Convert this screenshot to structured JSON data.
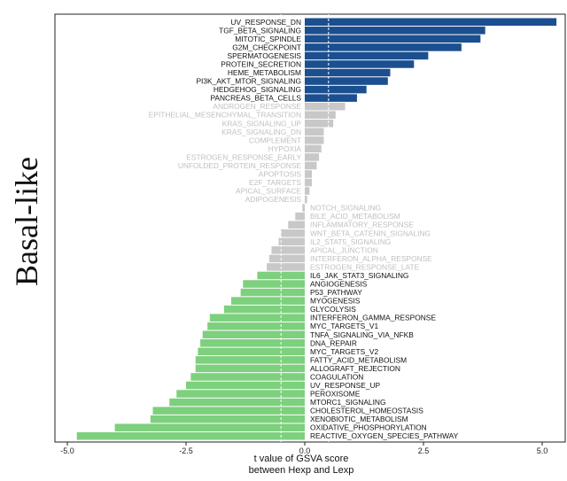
{
  "side_label": "Basal-like",
  "chart_data": {
    "type": "bar",
    "orientation": "horizontal",
    "xlabel_line1": "t value of GSVA score",
    "xlabel_line2": "between Hexp and Lexp",
    "xlim": [
      -5.0,
      5.0
    ],
    "xticks": [
      "-5.0",
      "-2.5",
      "0.0",
      "2.5",
      "5.0"
    ],
    "reference_lines": [
      -0.5,
      0.5
    ],
    "colors": {
      "up": "#1b4f8f",
      "neutral": "#c8c8c8",
      "down": "#7dd07d",
      "neutral_text": "#c0c0c0",
      "text": "#111111"
    },
    "categories": [
      "UV_RESPONSE_DN",
      "TGF_BETA_SIGNALING",
      "MITOTIC_SPINDLE",
      "G2M_CHECKPOINT",
      "SPERMATOGENESIS",
      "PROTEIN_SECRETION",
      "HEME_METABOLISM",
      "PI3K_AKT_MTOR_SIGNALING",
      "HEDGEHOG_SIGNALING",
      "PANCREAS_BETA_CELLS",
      "ANDROGEN_RESPONSE",
      "EPITHELIAL_MESENCHYMAL_TRANSITION",
      "KRAS_SIGNALING_UP",
      "KRAS_SIGNALING_DN",
      "COMPLEMENT",
      "HYPOXIA",
      "ESTROGEN_RESPONSE_EARLY",
      "UNFOLDED_PROTEIN_RESPONSE",
      "APOPTOSIS",
      "E2F_TARGETS",
      "APICAL_SURFACE",
      "ADIPOGENESIS",
      "NOTCH_SIGNALING",
      "BILE_ACID_METABOLISM",
      "INFLAMMATORY_RESPONSE",
      "WNT_BETA_CATENIN_SIGNALING",
      "IL2_STAT5_SIGNALING",
      "APICAL_JUNCTION",
      "INTERFERON_ALPHA_RESPONSE",
      "ESTROGEN_RESPONSE_LATE",
      "IL6_JAK_STAT3_SIGNALING",
      "ANGIOGENESIS",
      "P53_PATHWAY",
      "MYOGENESIS",
      "GLYCOLYSIS",
      "INTERFERON_GAMMA_RESPONSE",
      "MYC_TARGETS_V1",
      "TNFA_SIGNALING_VIA_NFKB",
      "DNA_REPAIR",
      "MYC_TARGETS_V2",
      "FATTY_ACID_METABOLISM",
      "ALLOGRAFT_REJECTION",
      "COAGULATION",
      "UV_RESPONSE_UP",
      "PEROXISOME",
      "MTORC1_SIGNALING",
      "CHOLESTEROL_HOMEOSTASIS",
      "XENOBIOTIC_METABOLISM",
      "OXIDATIVE_PHOSPHORYLATION",
      "REACTIVE_OXYGEN_SPECIES_PATHWAY"
    ],
    "values": [
      5.3,
      3.8,
      3.7,
      3.3,
      2.6,
      2.3,
      1.8,
      1.75,
      1.3,
      1.1,
      0.85,
      0.65,
      0.6,
      0.4,
      0.4,
      0.35,
      0.3,
      0.25,
      0.15,
      0.15,
      0.1,
      0.05,
      -0.05,
      -0.2,
      -0.35,
      -0.5,
      -0.55,
      -0.7,
      -0.75,
      -0.8,
      -1.0,
      -1.3,
      -1.35,
      -1.55,
      -1.7,
      -2.0,
      -2.05,
      -2.15,
      -2.2,
      -2.25,
      -2.3,
      -2.3,
      -2.4,
      -2.5,
      -2.7,
      -2.85,
      -3.2,
      -3.25,
      -4.0,
      -4.8
    ],
    "groups": [
      "up",
      "up",
      "up",
      "up",
      "up",
      "up",
      "up",
      "up",
      "up",
      "up",
      "neutral",
      "neutral",
      "neutral",
      "neutral",
      "neutral",
      "neutral",
      "neutral",
      "neutral",
      "neutral",
      "neutral",
      "neutral",
      "neutral",
      "neutral",
      "neutral",
      "neutral",
      "neutral",
      "neutral",
      "neutral",
      "neutral",
      "neutral",
      "down",
      "down",
      "down",
      "down",
      "down",
      "down",
      "down",
      "down",
      "down",
      "down",
      "down",
      "down",
      "down",
      "down",
      "down",
      "down",
      "down",
      "down",
      "down",
      "down"
    ]
  }
}
